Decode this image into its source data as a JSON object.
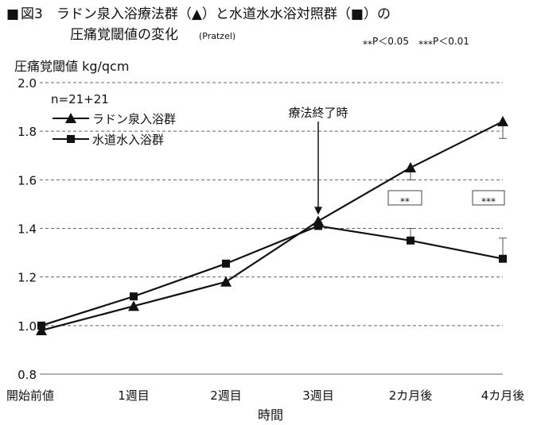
{
  "header": {
    "marker": "■",
    "title_line1": "図3　ラドン泉入浴療法群（▲）と水道水水浴対照群（■）の",
    "title_line2": "圧痛覚閾値の変化",
    "source": "(Pratzel)",
    "significance_legend": "⁎⁎P＜0.05　⁎⁎⁎P＜0.01"
  },
  "chart_data": {
    "type": "line",
    "title": "",
    "ylabel": "圧痛覚閾値 kg/qcm",
    "xlabel": "時間",
    "categories": [
      "開始前値",
      "1週目",
      "2週目",
      "3週目",
      "2カ月後",
      "4カ月後"
    ],
    "yticks": [
      "2.0",
      "1.8",
      "1.6",
      "1.4",
      "1.2",
      "1.0",
      "0.8"
    ],
    "ylim": [
      0.8,
      2.0
    ],
    "grid": "horizontal-dashed",
    "n_label": "n=21+21",
    "series": [
      {
        "name": "ラドン泉入浴群",
        "marker": "triangle",
        "values": [
          0.98,
          1.08,
          1.18,
          1.43,
          1.65,
          1.84
        ]
      },
      {
        "name": "水道水入浴群",
        "marker": "square",
        "values": [
          1.0,
          1.12,
          1.255,
          1.41,
          1.35,
          1.275
        ]
      }
    ],
    "annotations": {
      "treatment_end": {
        "label": "療法終了時",
        "category_index": 3
      },
      "significance": [
        {
          "category_index": 4,
          "label": "⁎⁎"
        },
        {
          "category_index": 5,
          "label": "⁎⁎⁎"
        }
      ],
      "error_bars": [
        {
          "category_index": 4,
          "series": 0,
          "value": 1.65,
          "upper": 1.65,
          "lower": 1.6
        },
        {
          "category_index": 4,
          "series": 1,
          "value": 1.35,
          "upper": 1.4,
          "lower": 1.35
        },
        {
          "category_index": 5,
          "series": 0,
          "value": 1.84,
          "upper": 1.84,
          "lower": 1.77
        },
        {
          "category_index": 5,
          "series": 1,
          "value": 1.275,
          "upper": 1.36,
          "lower": 1.275
        }
      ]
    }
  }
}
